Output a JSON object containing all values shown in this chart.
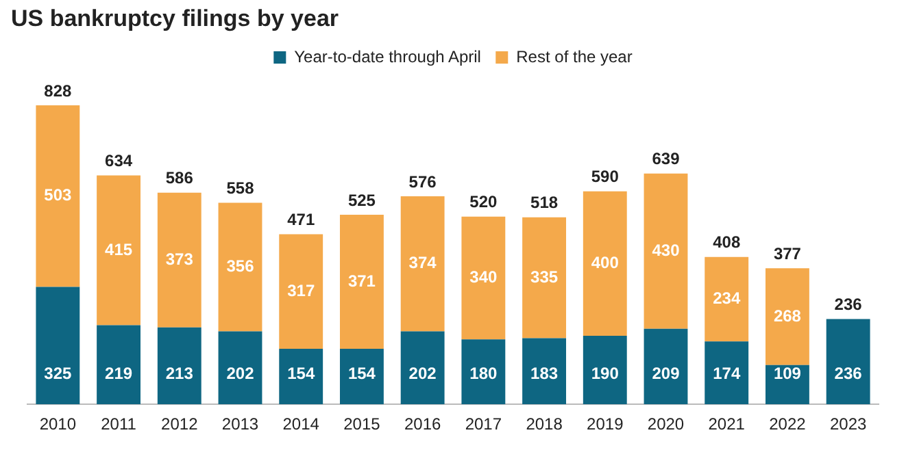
{
  "chart_data": {
    "type": "bar",
    "title": "US bankruptcy filings by year",
    "categories": [
      "2010",
      "2011",
      "2012",
      "2013",
      "2014",
      "2015",
      "2016",
      "2017",
      "2018",
      "2019",
      "2020",
      "2021",
      "2022",
      "2023"
    ],
    "stacked": true,
    "data_labels": true,
    "legend": "top",
    "tick_labels": "x",
    "grid": false,
    "series": [
      {
        "name": "Year-to-date through April",
        "color": "#0e6682",
        "values": [
          325,
          219,
          213,
          202,
          154,
          154,
          202,
          180,
          183,
          190,
          209,
          174,
          109,
          236
        ]
      },
      {
        "name": "Rest of the year",
        "color": "#f4a94b",
        "values": [
          503,
          415,
          373,
          356,
          317,
          371,
          374,
          340,
          335,
          400,
          430,
          234,
          268,
          null
        ]
      }
    ],
    "totals": [
      "828",
      "634",
      "586",
      "558",
      "471",
      "525",
      "576",
      "520",
      "518",
      "590",
      "639",
      "408",
      "377",
      "236"
    ]
  }
}
